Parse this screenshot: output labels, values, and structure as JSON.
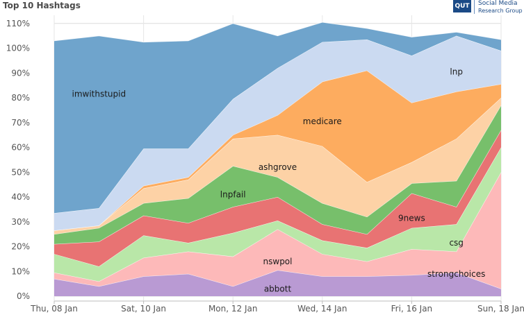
{
  "header": {
    "title": "Top 10 Hashtags",
    "logo_mark": "QUT",
    "logo_line1": "Social Media",
    "logo_line2": "Research Group"
  },
  "chart_data": {
    "type": "area",
    "stacked": true,
    "title": "Top 10 Hashtags",
    "xlabel": "",
    "ylabel": "",
    "ylim": [
      0,
      112
    ],
    "grid": true,
    "y_ticks": [
      0,
      10,
      20,
      30,
      40,
      50,
      60,
      70,
      80,
      90,
      100,
      110
    ],
    "y_tick_labels": [
      "0%",
      "10%",
      "20%",
      "30%",
      "40%",
      "50%",
      "60%",
      "70%",
      "80%",
      "90%",
      "100%",
      "110%"
    ],
    "x": [
      "2015-01-08",
      "2015-01-09",
      "2015-01-10",
      "2015-01-11",
      "2015-01-12",
      "2015-01-13",
      "2015-01-14",
      "2015-01-15",
      "2015-01-16",
      "2015-01-17",
      "2015-01-18"
    ],
    "x_ticks": [
      {
        "date": "2015-01-08",
        "label": "Thu, 08 Jan"
      },
      {
        "date": "2015-01-10",
        "label": "Sat, 10 Jan"
      },
      {
        "date": "2015-01-12",
        "label": "Mon, 12 Jan"
      },
      {
        "date": "2015-01-14",
        "label": "Wed, 14 Jan"
      },
      {
        "date": "2015-01-16",
        "label": "Fri, 16 Jan"
      },
      {
        "date": "2015-01-18",
        "label": "Sun, 18 Jan"
      }
    ],
    "series": [
      {
        "name": "abbott",
        "color": "#b99ad3",
        "values": [
          7,
          4,
          8,
          9,
          4,
          10.5,
          8,
          8,
          8.5,
          9.5,
          3
        ]
      },
      {
        "name": "strongchoices",
        "color": "#fdb9b9",
        "values": [
          2.5,
          2,
          7.5,
          9,
          12,
          16.5,
          9,
          6,
          10.5,
          8.5,
          47
        ]
      },
      {
        "name": "csg",
        "color": "#b9e7a8",
        "values": [
          7.5,
          6,
          9,
          3.5,
          9.5,
          3.5,
          5.5,
          5.5,
          8.5,
          11,
          10
        ]
      },
      {
        "name": "9news",
        "color": "#e87373",
        "values": [
          4,
          10,
          8,
          8,
          10.5,
          9.5,
          6.5,
          5.5,
          14,
          7,
          7
        ]
      },
      {
        "name": "lnpfail",
        "color": "#77bf6b",
        "values": [
          4,
          5.5,
          5,
          10,
          16.5,
          8,
          8.5,
          7,
          4,
          10.5,
          10
        ]
      },
      {
        "name": "ashgrove",
        "color": "#fdd2a6",
        "values": [
          1.5,
          1,
          6,
          7.5,
          11,
          17,
          23,
          14,
          8.5,
          17,
          3
        ]
      },
      {
        "name": "medicare",
        "color": "#fdac5f",
        "values": [
          0,
          0,
          1,
          1,
          1.5,
          8,
          26,
          45,
          24,
          19,
          5.5
        ]
      },
      {
        "name": "lnp",
        "color": "#cbdaf1",
        "values": [
          7,
          7,
          15,
          11.5,
          14.5,
          19,
          16,
          12.5,
          19,
          22.5,
          13.5
        ]
      },
      {
        "name": "imwithstupid",
        "color": "#6fa4cc",
        "values": [
          69.5,
          69.5,
          43,
          43.5,
          30.5,
          13,
          8,
          4.5,
          7.5,
          1.5,
          4.5
        ]
      }
    ],
    "series_labels": [
      {
        "series": "imwithstupid",
        "text": "imwithstupid",
        "x": "2015-01-09",
        "y": 81.5
      },
      {
        "series": "lnp",
        "text": "lnp",
        "x": "2015-01-17",
        "y": 90.5
      },
      {
        "series": "medicare",
        "text": "medicare",
        "x": "2015-01-14",
        "y": 70.5
      },
      {
        "series": "ashgrove",
        "text": "ashgrove",
        "x": "2015-01-13",
        "y": 52
      },
      {
        "series": "lnpfail",
        "text": "lnpfail",
        "x": "2015-01-12",
        "y": 41
      },
      {
        "series": "9news",
        "text": "9news",
        "x": "2015-01-16",
        "y": 31.5
      },
      {
        "series": "csg",
        "text": "csg",
        "x": "2015-01-17",
        "y": 21.5
      },
      {
        "series": "nswpol",
        "text": "nswpol",
        "x": "2015-01-13",
        "y": 14
      },
      {
        "series": "strongchoices",
        "text": "strongchoices",
        "x": "2015-01-17",
        "y": 9
      },
      {
        "series": "abbott",
        "text": "abbott",
        "x": "2015-01-13",
        "y": 3
      }
    ],
    "nswpol_overlay": {
      "name": "nswpol",
      "color": "#f6a8a8"
    }
  }
}
